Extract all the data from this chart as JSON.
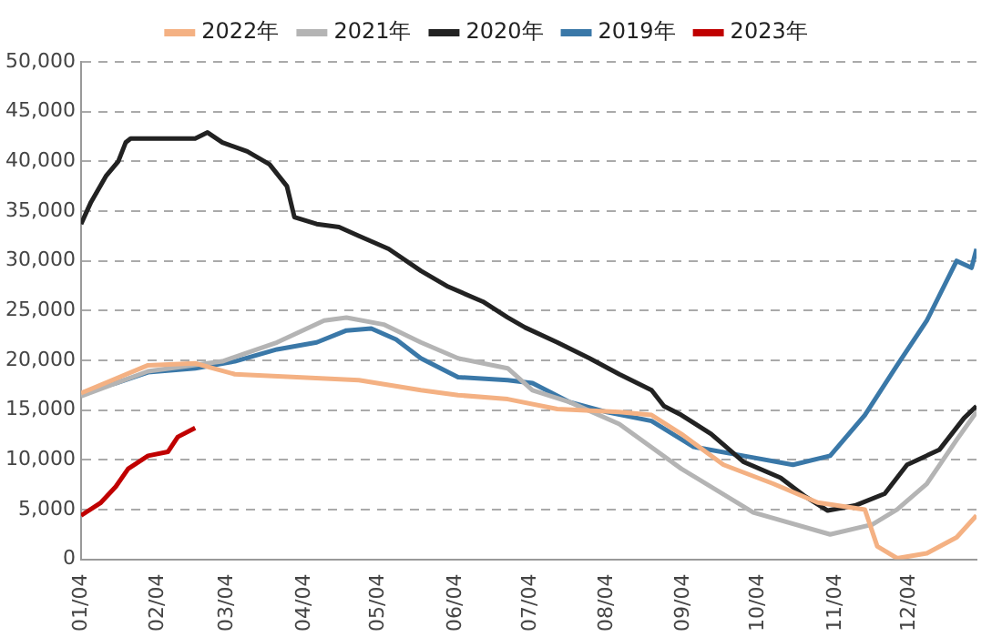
{
  "chart_data": {
    "type": "line",
    "legend": "top",
    "grid": "y",
    "line_style": "solid",
    "marker": "none",
    "xlim": [
      "--01-04",
      "--12-31"
    ],
    "xticks": [
      {
        "value": "--01-04",
        "label": "01/04"
      },
      {
        "value": "--02-04",
        "label": "02/04"
      },
      {
        "value": "--03-04",
        "label": "03/04"
      },
      {
        "value": "--04-04",
        "label": "04/04"
      },
      {
        "value": "--05-04",
        "label": "05/04"
      },
      {
        "value": "--06-04",
        "label": "06/04"
      },
      {
        "value": "--07-04",
        "label": "07/04"
      },
      {
        "value": "--08-04",
        "label": "08/04"
      },
      {
        "value": "--09-04",
        "label": "09/04"
      },
      {
        "value": "--10-04",
        "label": "10/04"
      },
      {
        "value": "--11-04",
        "label": "11/04"
      },
      {
        "value": "--12-04",
        "label": "12/04"
      }
    ],
    "ylim": [
      0,
      50000
    ],
    "yticks": [
      {
        "value": 0,
        "label": "0"
      },
      {
        "value": 5000,
        "label": "5,000"
      },
      {
        "value": 10000,
        "label": "10,000"
      },
      {
        "value": 15000,
        "label": "15,000"
      },
      {
        "value": 20000,
        "label": "20,000"
      },
      {
        "value": 25000,
        "label": "25,000"
      },
      {
        "value": 30000,
        "label": "30,000"
      },
      {
        "value": 35000,
        "label": "35,000"
      },
      {
        "value": 40000,
        "label": "40,000"
      },
      {
        "value": 45000,
        "label": "45,000"
      },
      {
        "value": 50000,
        "label": "50,000"
      }
    ],
    "series": [
      {
        "name": "2022年",
        "color": "#f4b183",
        "x": [
          "--01-04",
          "--01-31",
          "--02-19",
          "--03-07",
          "--04-01",
          "--04-26",
          "--05-21",
          "--06-05",
          "--06-25",
          "--07-15",
          "--08-09",
          "--08-22",
          "--09-03",
          "--09-20",
          "--10-10",
          "--10-28",
          "--11-16",
          "--11-21",
          "--11-29",
          "--12-11",
          "--12-23",
          "--12-31"
        ],
        "values": [
          16700,
          19500,
          19700,
          18600,
          18300,
          18000,
          17000,
          16500,
          16100,
          15100,
          14800,
          14500,
          12600,
          9500,
          7600,
          5700,
          5000,
          1300,
          100,
          600,
          2200,
          4400
        ]
      },
      {
        "name": "2021年",
        "color": "#b4b4b4",
        "x": [
          "--01-04",
          "--01-31",
          "--03-02",
          "--03-24",
          "--04-12",
          "--04-21",
          "--05-06",
          "--05-21",
          "--06-05",
          "--06-25",
          "--07-05",
          "--07-20",
          "--08-09",
          "--09-03",
          "--10-02",
          "--11-02",
          "--11-19",
          "--11-29",
          "--12-11",
          "--12-23",
          "--12-31"
        ],
        "values": [
          16400,
          18900,
          19900,
          21800,
          24000,
          24300,
          23600,
          21800,
          20200,
          19200,
          17000,
          15800,
          13600,
          9100,
          4700,
          2500,
          3500,
          5000,
          7600,
          12000,
          14800
        ]
      },
      {
        "name": "2020年",
        "color": "#222222",
        "x": [
          "--01-04",
          "--01-08",
          "--01-14",
          "--01-19",
          "--01-22",
          "--01-24",
          "--02-19",
          "--02-24",
          "--03-02",
          "--03-12",
          "--03-21",
          "--03-28",
          "--03-31",
          "--04-09",
          "--04-18",
          "--04-26",
          "--05-08",
          "--05-21",
          "--06-01",
          "--06-15",
          "--06-25",
          "--07-02",
          "--07-15",
          "--07-28",
          "--08-09",
          "--08-22",
          "--08-27",
          "--09-03",
          "--09-15",
          "--09-28",
          "--10-13",
          "--10-23",
          "--11-01",
          "--11-12",
          "--11-24",
          "--12-03",
          "--12-16",
          "--12-26",
          "--12-31"
        ],
        "values": [
          33700,
          35900,
          38500,
          40000,
          41900,
          42300,
          42300,
          42900,
          41900,
          41000,
          39700,
          37500,
          34400,
          33700,
          33400,
          32500,
          31200,
          29000,
          27400,
          25900,
          24300,
          23300,
          21800,
          20200,
          18600,
          17000,
          15400,
          14500,
          12600,
          9800,
          8200,
          6300,
          4900,
          5400,
          6600,
          9500,
          11000,
          14200,
          15400
        ]
      },
      {
        "name": "2019年",
        "color": "#3a78a8",
        "x": [
          "--01-04",
          "--01-18",
          "--01-31",
          "--02-19",
          "--03-07",
          "--03-24",
          "--04-09",
          "--04-21",
          "--05-01",
          "--05-11",
          "--05-21",
          "--06-05",
          "--06-25",
          "--07-05",
          "--07-20",
          "--08-04",
          "--08-22",
          "--09-08",
          "--09-28",
          "--10-18",
          "--11-02",
          "--11-16",
          "--11-29",
          "--12-11",
          "--12-23",
          "--12-29",
          "--12-31"
        ],
        "values": [
          16700,
          17700,
          18800,
          19200,
          19900,
          21100,
          21800,
          23000,
          23200,
          22100,
          20200,
          18300,
          18000,
          17700,
          15800,
          14800,
          13900,
          11300,
          10400,
          9500,
          10400,
          14500,
          19500,
          24000,
          30000,
          29300,
          31200
        ]
      },
      {
        "name": "2023年",
        "color": "#c00000",
        "x": [
          "--01-04",
          "--01-12",
          "--01-18",
          "--01-23",
          "--01-31",
          "--02-08",
          "--02-12",
          "--02-19"
        ],
        "values": [
          4400,
          5700,
          7300,
          9100,
          10400,
          10800,
          12300,
          13200
        ]
      }
    ]
  }
}
